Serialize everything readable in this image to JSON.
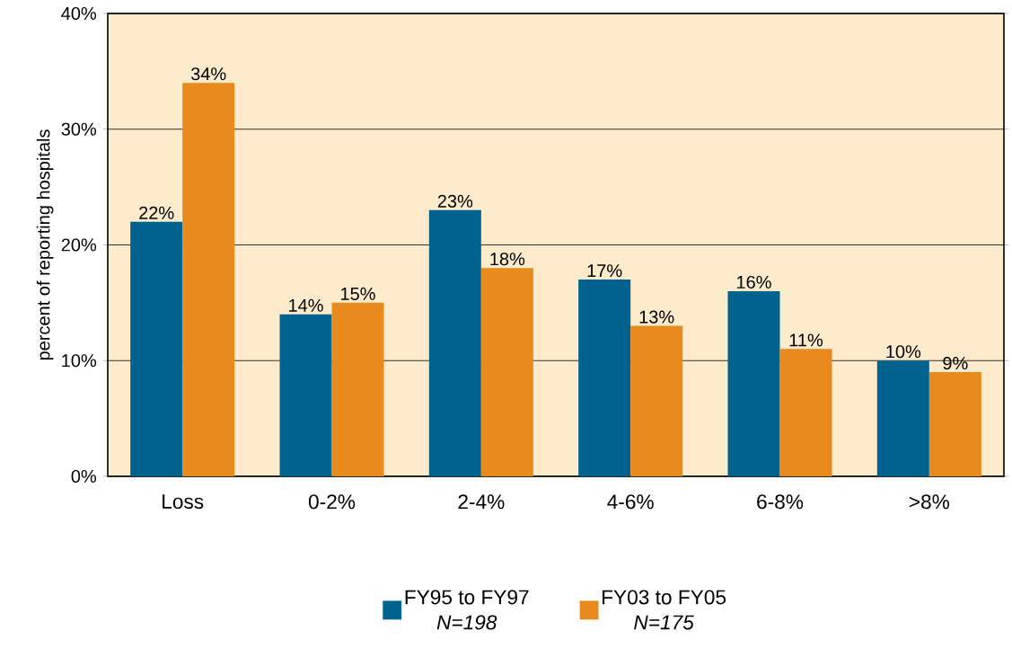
{
  "chart_data": {
    "type": "bar",
    "ylabel": "percent of reporting hospitals",
    "categories": [
      "Loss",
      "0-2%",
      "2-4%",
      "4-6%",
      "6-8%",
      ">8%"
    ],
    "series": [
      {
        "name": "FY95 to FY97",
        "color": "#00628f",
        "values": [
          22,
          14,
          23,
          17,
          16,
          10
        ],
        "value_labels": [
          "22%",
          "14%",
          "23%",
          "17%",
          "16%",
          "10%"
        ]
      },
      {
        "name": "FY03 to FY05",
        "color": "#e98a1f",
        "values": [
          34,
          15,
          18,
          13,
          11,
          9
        ],
        "value_labels": [
          "34%",
          "15%",
          "18%",
          "13%",
          "11%",
          "9%"
        ]
      }
    ],
    "annotations": [
      "N=198",
      "N=175"
    ],
    "ylim": [
      0,
      40
    ],
    "yticks": [
      {
        "value": 0,
        "label": "0%"
      },
      {
        "value": 10,
        "label": "10%"
      },
      {
        "value": 20,
        "label": "20%"
      },
      {
        "value": 30,
        "label": "30%"
      },
      {
        "value": 40,
        "label": "40%"
      }
    ],
    "grid": "y",
    "legend": "bottom"
  }
}
